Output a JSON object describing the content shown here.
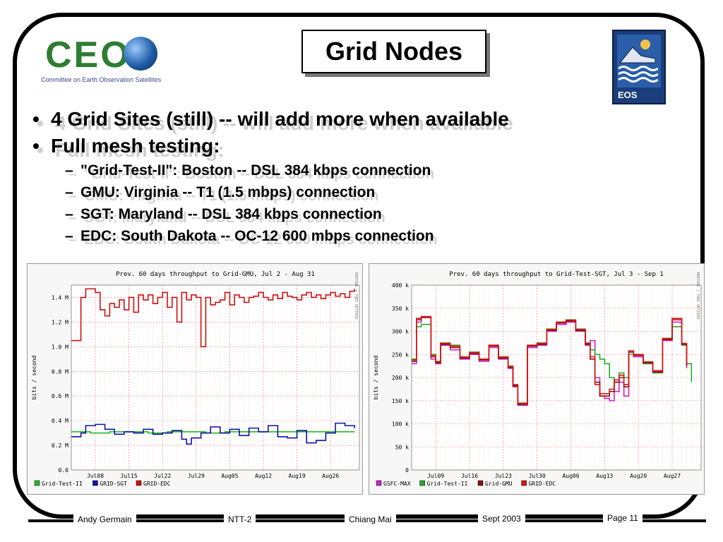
{
  "header": {
    "title": "Grid Nodes",
    "ceos_logo_word": "CEOS",
    "ceos_logo_subtitle": "Committee on Earth Observation Satellites",
    "eos_logo_text": "EOS"
  },
  "bullets": [
    {
      "level": 1,
      "text": "4 Grid Sites (still) -- will add more when available"
    },
    {
      "level": 1,
      "text": "Full mesh testing:"
    },
    {
      "level": 2,
      "text": "\"Grid-Test-II\": Boston -- DSL 384 kbps connection"
    },
    {
      "level": 2,
      "text": "GMU: Virginia -- T1 (1.5 mbps) connection"
    },
    {
      "level": 2,
      "text": "SGT: Maryland -- DSL 384 kbps connection"
    },
    {
      "level": 2,
      "text": "EDC: South Dakota -- OC-12 600 mbps connection"
    }
  ],
  "chart_data": [
    {
      "type": "line",
      "title": "Prev. 60 days throughput to Grid-GMU, Jul  2 - Aug 31",
      "ylabel": "bits / second",
      "side_label": "RRDTOOL / TOBI OETIKER",
      "yticks": [
        "0.0",
        "0.2 M",
        "0.4 M",
        "0.6 M",
        "0.8 M",
        "1.0 M",
        "1.2 M",
        "1.4 M"
      ],
      "ylim": [
        0,
        1.5
      ],
      "xticks": [
        "Jul08",
        "Jul15",
        "Jul22",
        "Jul29",
        "Aug05",
        "Aug12",
        "Aug19",
        "Aug26"
      ],
      "xlim": [
        0,
        60
      ],
      "grid": true,
      "legend_position": "bottom",
      "series": [
        {
          "name": "Grid-Test-II",
          "color": "#22bb22",
          "x": [
            0,
            4,
            8,
            12,
            16,
            20,
            24,
            28,
            32,
            36,
            40,
            44,
            48,
            52,
            56,
            59
          ],
          "values": [
            0.31,
            0.3,
            0.31,
            0.31,
            0.3,
            0.31,
            0.31,
            0.3,
            0.31,
            0.31,
            0.31,
            0.31,
            0.31,
            0.31,
            0.31,
            0.31
          ]
        },
        {
          "name": "GRID-SGT",
          "color": "#1010aa",
          "x": [
            0,
            2,
            3,
            5,
            7,
            9,
            11,
            13,
            15,
            17,
            19,
            21,
            23,
            24,
            25,
            27,
            29,
            31,
            33,
            35,
            37,
            39,
            41,
            43,
            45,
            47,
            49,
            51,
            53,
            55,
            57,
            59
          ],
          "values": [
            0.27,
            0.3,
            0.36,
            0.37,
            0.33,
            0.29,
            0.31,
            0.3,
            0.33,
            0.29,
            0.3,
            0.32,
            0.25,
            0.21,
            0.26,
            0.3,
            0.35,
            0.3,
            0.33,
            0.28,
            0.34,
            0.31,
            0.36,
            0.27,
            0.26,
            0.32,
            0.22,
            0.24,
            0.3,
            0.38,
            0.36,
            0.34
          ]
        },
        {
          "name": "GRID-EDC",
          "color": "#cc1111",
          "x": [
            0,
            1,
            2,
            3,
            5,
            6,
            7,
            8,
            9,
            10,
            11,
            12,
            13,
            14,
            15,
            16,
            17,
            18,
            19,
            20,
            21,
            22,
            23,
            24,
            25,
            26,
            27,
            28,
            29,
            30,
            31,
            32,
            33,
            34,
            35,
            36,
            37,
            38,
            39,
            40,
            41,
            42,
            43,
            44,
            45,
            46,
            47,
            48,
            49,
            50,
            51,
            52,
            53,
            54,
            55,
            56,
            57,
            58,
            59
          ],
          "values": [
            1.05,
            1.05,
            1.4,
            1.47,
            1.44,
            1.3,
            1.25,
            1.35,
            1.32,
            1.38,
            1.3,
            1.4,
            1.28,
            1.42,
            1.38,
            1.42,
            1.35,
            1.4,
            1.44,
            1.32,
            1.4,
            1.2,
            1.44,
            1.38,
            1.42,
            1.4,
            1.0,
            1.4,
            1.34,
            1.36,
            1.38,
            1.44,
            1.34,
            1.42,
            1.4,
            1.36,
            1.4,
            1.41,
            1.44,
            1.4,
            1.38,
            1.42,
            1.39,
            1.44,
            1.41,
            1.4,
            1.38,
            1.42,
            1.44,
            1.4,
            1.42,
            1.39,
            1.42,
            1.44,
            1.41,
            1.43,
            1.4,
            1.45,
            1.47
          ]
        }
      ]
    },
    {
      "type": "line",
      "title": "Prev. 60 days throughput to Grid-Test-SGT, Jul  3 - Sep  1",
      "ylabel": "bits / second",
      "side_label": "RRDTOOL / TOBI OETIKER",
      "yticks": [
        "0",
        "50 k",
        "100 k",
        "150 k",
        "200 k",
        "250 k",
        "300 k",
        "350 k",
        "400 k"
      ],
      "ylim": [
        0,
        400
      ],
      "xticks": [
        "Jul09",
        "Jul16",
        "Jul23",
        "Jul30",
        "Aug06",
        "Aug13",
        "Aug20",
        "Aug27"
      ],
      "xlim": [
        0,
        60
      ],
      "grid": true,
      "legend_position": "bottom",
      "series": [
        {
          "name": "GSFC-MAX",
          "color": "#cc22cc",
          "x": [
            0,
            1,
            2,
            4,
            5,
            6,
            8,
            10,
            12,
            14,
            16,
            18,
            20,
            21,
            22,
            24,
            26,
            28,
            30,
            32,
            34,
            36,
            37,
            38,
            39,
            40,
            41,
            42,
            43,
            44,
            45,
            46,
            48,
            50,
            52,
            54,
            56,
            57
          ],
          "values": [
            230,
            320,
            330,
            240,
            230,
            270,
            260,
            240,
            250,
            235,
            265,
            240,
            220,
            180,
            140,
            265,
            270,
            300,
            315,
            320,
            300,
            270,
            280,
            200,
            160,
            155,
            150,
            170,
            190,
            160,
            250,
            245,
            230,
            215,
            280,
            320,
            270,
            220
          ]
        },
        {
          "name": "Grid-Test-II",
          "color": "#22aa22",
          "x": [
            0,
            1,
            2,
            4,
            5,
            6,
            8,
            10,
            12,
            14,
            16,
            18,
            20,
            21,
            22,
            24,
            26,
            28,
            30,
            32,
            34,
            36,
            37,
            38,
            39,
            40,
            41,
            42,
            43,
            44,
            45,
            46,
            48,
            50,
            52,
            54,
            56,
            57,
            58
          ],
          "values": [
            240,
            310,
            315,
            250,
            235,
            275,
            270,
            245,
            255,
            240,
            270,
            245,
            225,
            185,
            145,
            270,
            275,
            305,
            320,
            325,
            305,
            275,
            260,
            250,
            240,
            230,
            200,
            190,
            210,
            200,
            250,
            250,
            230,
            210,
            285,
            310,
            270,
            230,
            190
          ]
        },
        {
          "name": "Grid-GMU",
          "color": "#881111",
          "x": [
            0,
            1,
            2,
            4,
            5,
            6,
            8,
            10,
            12,
            14,
            16,
            18,
            20,
            21,
            22,
            24,
            26,
            28,
            30,
            32,
            34,
            36,
            37,
            38,
            39,
            40,
            41,
            42,
            43,
            44,
            45,
            46,
            48,
            50,
            52,
            54,
            56,
            57
          ],
          "values": [
            235,
            325,
            330,
            245,
            232,
            272,
            265,
            242,
            252,
            238,
            268,
            242,
            222,
            182,
            142,
            268,
            272,
            302,
            318,
            322,
            302,
            272,
            240,
            190,
            160,
            160,
            170,
            190,
            200,
            180,
            255,
            248,
            232,
            212,
            282,
            325,
            272,
            225
          ]
        },
        {
          "name": "GRID-EDC",
          "color": "#dd1111",
          "x": [
            0,
            1,
            2,
            4,
            5,
            6,
            8,
            10,
            12,
            14,
            16,
            18,
            20,
            21,
            22,
            24,
            26,
            28,
            30,
            32,
            34,
            36,
            37,
            38,
            39,
            40,
            41,
            42,
            43,
            44,
            45,
            46,
            48,
            50,
            52,
            54,
            56,
            57
          ],
          "values": [
            238,
            328,
            332,
            248,
            234,
            274,
            268,
            244,
            254,
            240,
            270,
            244,
            224,
            184,
            144,
            270,
            274,
            304,
            320,
            324,
            304,
            274,
            245,
            185,
            165,
            165,
            175,
            195,
            205,
            185,
            258,
            250,
            234,
            214,
            284,
            328,
            274,
            230
          ]
        }
      ]
    }
  ],
  "footer": {
    "author": "Andy Germain",
    "event": "NTT-2",
    "location": "Chiang Mai",
    "date": "Sept 2003",
    "page": "Page 11"
  },
  "colors": {
    "frame": "#000000",
    "title_shadow": "#777777",
    "chart_bg": "#f7f7f7",
    "plot_bg": "#ffffff",
    "grid": "#e08080"
  }
}
